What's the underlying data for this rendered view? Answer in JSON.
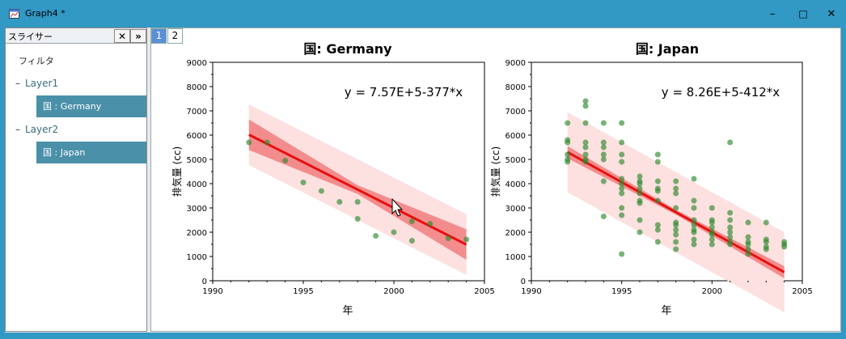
{
  "window": {
    "title": "Graph4 *",
    "min_glyph": "–",
    "max_glyph": "□",
    "close_glyph": "✕"
  },
  "slicer": {
    "title": "スライサー",
    "close_glyph": "✕",
    "collapse_glyph": "»",
    "filter_label": "フィルタ",
    "layers": [
      {
        "label": "Layer1",
        "item": "国 : Germany"
      },
      {
        "label": "Layer2",
        "item": "国 : Japan"
      }
    ]
  },
  "tabs": [
    "1",
    "2"
  ],
  "charts": {
    "germany": {
      "title": "国: Germany",
      "equation": "y = 7.57E+5-377*x",
      "xlabel": "年",
      "ylabel": "排気量 (cc)",
      "xticks": [
        "1990",
        "1995",
        "2000",
        "2005"
      ],
      "yticks": [
        "0",
        "1000",
        "2000",
        "3000",
        "4000",
        "5000",
        "6000",
        "7000",
        "8000",
        "9000"
      ]
    },
    "japan": {
      "title": "国: Japan",
      "equation": "y = 8.26E+5-412*x",
      "xlabel": "年",
      "ylabel": "排気量 (cc)",
      "xticks": [
        "1990",
        "1995",
        "2000",
        "2005"
      ],
      "yticks": [
        "0",
        "1000",
        "2000",
        "3000",
        "4000",
        "5000",
        "6000",
        "7000",
        "8000",
        "9000"
      ]
    }
  },
  "chart_data": [
    {
      "type": "scatter",
      "title": "国: Germany",
      "xlabel": "年",
      "ylabel": "排気量 (cc)",
      "xlim": [
        1990,
        2005
      ],
      "ylim": [
        0,
        9000
      ],
      "points": [
        [
          1992,
          5700
        ],
        [
          1993,
          5700
        ],
        [
          1994,
          4950
        ],
        [
          1995,
          4050
        ],
        [
          1996,
          3700
        ],
        [
          1997,
          3250
        ],
        [
          1998,
          3250
        ],
        [
          1998,
          2550
        ],
        [
          1999,
          1850
        ],
        [
          2000,
          2000
        ],
        [
          2001,
          2450
        ],
        [
          2001,
          1650
        ],
        [
          2002,
          2350
        ],
        [
          2003,
          1750
        ],
        [
          2004,
          1700
        ]
      ],
      "fit": {
        "intercept": 757000,
        "slope": -377,
        "x_range": [
          1992,
          2004
        ]
      },
      "confidence_band": {
        "color": "#f07878"
      },
      "prediction_band": {
        "color": "#fde0e0"
      },
      "point_color": "#2e8b2e",
      "line_color": "#e81010"
    },
    {
      "type": "scatter",
      "title": "国: Japan",
      "xlabel": "年",
      "ylabel": "排気量 (cc)",
      "xlim": [
        1990,
        2005
      ],
      "ylim": [
        0,
        9000
      ],
      "points": [
        [
          1992,
          6500
        ],
        [
          1992,
          5800
        ],
        [
          1992,
          5700
        ],
        [
          1992,
          5200
        ],
        [
          1992,
          5000
        ],
        [
          1992,
          4900
        ],
        [
          1993,
          7400
        ],
        [
          1993,
          7200
        ],
        [
          1993,
          6500
        ],
        [
          1993,
          5700
        ],
        [
          1993,
          5500
        ],
        [
          1993,
          5200
        ],
        [
          1993,
          5000
        ],
        [
          1993,
          4900
        ],
        [
          1994,
          6500
        ],
        [
          1994,
          5700
        ],
        [
          1994,
          5500
        ],
        [
          1994,
          5200
        ],
        [
          1994,
          5000
        ],
        [
          1994,
          4100
        ],
        [
          1994,
          2650
        ],
        [
          1995,
          6500
        ],
        [
          1995,
          5700
        ],
        [
          1995,
          5200
        ],
        [
          1995,
          4900
        ],
        [
          1995,
          4200
        ],
        [
          1995,
          4000
        ],
        [
          1995,
          3800
        ],
        [
          1995,
          3600
        ],
        [
          1995,
          3000
        ],
        [
          1995,
          2700
        ],
        [
          1995,
          1100
        ],
        [
          1996,
          4300
        ],
        [
          1996,
          4100
        ],
        [
          1996,
          4000
        ],
        [
          1996,
          3800
        ],
        [
          1996,
          3600
        ],
        [
          1996,
          3300
        ],
        [
          1996,
          3200
        ],
        [
          1996,
          2500
        ],
        [
          1996,
          2000
        ],
        [
          1997,
          5200
        ],
        [
          1997,
          4900
        ],
        [
          1997,
          4100
        ],
        [
          1997,
          3800
        ],
        [
          1997,
          3700
        ],
        [
          1997,
          3300
        ],
        [
          1997,
          2300
        ],
        [
          1997,
          2100
        ],
        [
          1997,
          1600
        ],
        [
          1998,
          4100
        ],
        [
          1998,
          3800
        ],
        [
          1998,
          3600
        ],
        [
          1998,
          3000
        ],
        [
          1998,
          2400
        ],
        [
          1998,
          2300
        ],
        [
          1998,
          2100
        ],
        [
          1998,
          1900
        ],
        [
          1998,
          1600
        ],
        [
          1998,
          1300
        ],
        [
          1999,
          4200
        ],
        [
          1999,
          3300
        ],
        [
          1999,
          3000
        ],
        [
          1999,
          2500
        ],
        [
          1999,
          2300
        ],
        [
          1999,
          2100
        ],
        [
          1999,
          2000
        ],
        [
          1999,
          1700
        ],
        [
          1999,
          1500
        ],
        [
          2000,
          3000
        ],
        [
          2000,
          2500
        ],
        [
          2000,
          2400
        ],
        [
          2000,
          2200
        ],
        [
          2000,
          2000
        ],
        [
          2000,
          1900
        ],
        [
          2000,
          1700
        ],
        [
          2000,
          1500
        ],
        [
          2001,
          5700
        ],
        [
          2001,
          2800
        ],
        [
          2001,
          2500
        ],
        [
          2001,
          2200
        ],
        [
          2001,
          2000
        ],
        [
          2001,
          1800
        ],
        [
          2001,
          1600
        ],
        [
          2001,
          1500
        ],
        [
          2002,
          2400
        ],
        [
          2002,
          1800
        ],
        [
          2002,
          1600
        ],
        [
          2002,
          1500
        ],
        [
          2002,
          1300
        ],
        [
          2002,
          1100
        ],
        [
          2003,
          2400
        ],
        [
          2003,
          1700
        ],
        [
          2003,
          1600
        ],
        [
          2003,
          1400
        ],
        [
          2003,
          1300
        ],
        [
          2004,
          1600
        ],
        [
          2004,
          1500
        ],
        [
          2004,
          1400
        ]
      ],
      "fit": {
        "intercept": 826000,
        "slope": -412,
        "x_range": [
          1992,
          2004
        ]
      },
      "confidence_band": {
        "color": "#f07878"
      },
      "prediction_band": {
        "color": "#fde0e0"
      },
      "point_color": "#2e8b2e",
      "line_color": "#e81010"
    }
  ]
}
